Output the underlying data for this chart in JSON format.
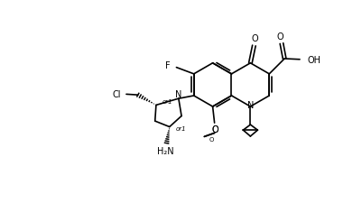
{
  "bg_color": "#ffffff",
  "line_color": "#000000",
  "line_width": 1.2,
  "fig_width": 4.02,
  "fig_height": 2.26,
  "dpi": 100,
  "xlim": [
    0,
    10
  ],
  "ylim": [
    0,
    5.6
  ]
}
